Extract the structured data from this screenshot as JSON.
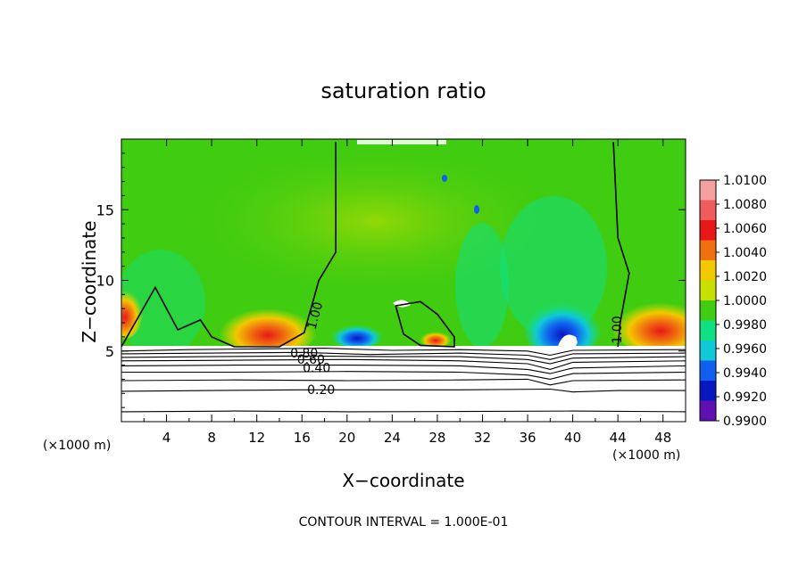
{
  "chart_data": {
    "type": "heatmap",
    "title": "saturation ratio",
    "xlabel": "X−coordinate",
    "ylabel": "Z−coordinate",
    "x_unit_left": "(×1000 m)",
    "x_unit_right": "(×1000 m)",
    "xlim": [
      0,
      50
    ],
    "ylim": [
      0,
      20
    ],
    "xticks": [
      4,
      8,
      12,
      16,
      20,
      24,
      28,
      32,
      36,
      40,
      44,
      48
    ],
    "yticks": [
      5,
      10,
      15
    ],
    "footer": "CONTOUR INTERVAL =  1.000E-01",
    "colorbar": {
      "levels": [
        "1.0100",
        "1.0080",
        "1.0060",
        "1.0040",
        "1.0020",
        "1.0000",
        "0.9980",
        "0.9960",
        "0.9940",
        "0.9920",
        "0.9900"
      ],
      "colors": [
        "#f4a0a0",
        "#ee5c5c",
        "#e81818",
        "#f07010",
        "#f2c800",
        "#c8e000",
        "#40cc10",
        "#10e080",
        "#10c8d8",
        "#1060f0",
        "#0818c0",
        "#6010b0"
      ]
    },
    "contour_labels": [
      {
        "text": "1.00",
        "x": 17.2,
        "y": 7.5,
        "angle": -75
      },
      {
        "text": "1.00",
        "x": 44.0,
        "y": 6.5,
        "angle": -90
      },
      {
        "text": "0.80",
        "x": 16.2,
        "y": 4.8,
        "angle": 0
      },
      {
        "text": "0.60",
        "x": 16.8,
        "y": 4.35,
        "angle": 0
      },
      {
        "text": "0.40",
        "x": 17.3,
        "y": 3.75,
        "angle": 0
      },
      {
        "text": "0.20",
        "x": 17.7,
        "y": 2.2,
        "angle": 0
      }
    ],
    "contour_lines": [
      {
        "level": "0.10",
        "points": [
          [
            0,
            0.7
          ],
          [
            10,
            0.75
          ],
          [
            20,
            0.7
          ],
          [
            30,
            0.72
          ],
          [
            40,
            0.75
          ],
          [
            50,
            0.7
          ]
        ]
      },
      {
        "level": "0.20",
        "points": [
          [
            0,
            2.15
          ],
          [
            8,
            2.2
          ],
          [
            16,
            2.25
          ],
          [
            22,
            2.25
          ],
          [
            30,
            2.25
          ],
          [
            38,
            2.3
          ],
          [
            40,
            2.1
          ],
          [
            44,
            2.2
          ],
          [
            50,
            2.2
          ]
        ]
      },
      {
        "level": "0.30",
        "points": [
          [
            0,
            2.9
          ],
          [
            10,
            2.95
          ],
          [
            20,
            2.9
          ],
          [
            30,
            2.95
          ],
          [
            36,
            3.0
          ],
          [
            38,
            2.6
          ],
          [
            40,
            2.9
          ],
          [
            50,
            2.95
          ]
        ]
      },
      {
        "level": "0.40",
        "points": [
          [
            0,
            3.5
          ],
          [
            10,
            3.5
          ],
          [
            20,
            3.55
          ],
          [
            30,
            3.5
          ],
          [
            36,
            3.3
          ],
          [
            38,
            3.0
          ],
          [
            40,
            3.4
          ],
          [
            50,
            3.5
          ]
        ]
      },
      {
        "level": "0.50",
        "points": [
          [
            0,
            3.95
          ],
          [
            10,
            4.0
          ],
          [
            20,
            4.0
          ],
          [
            30,
            3.95
          ],
          [
            36,
            3.7
          ],
          [
            38,
            3.4
          ],
          [
            40,
            3.8
          ],
          [
            50,
            3.95
          ]
        ]
      },
      {
        "level": "0.60",
        "points": [
          [
            0,
            4.3
          ],
          [
            10,
            4.35
          ],
          [
            20,
            4.4
          ],
          [
            30,
            4.3
          ],
          [
            36,
            4.1
          ],
          [
            38,
            3.7
          ],
          [
            40,
            4.2
          ],
          [
            50,
            4.3
          ]
        ]
      },
      {
        "level": "0.70",
        "points": [
          [
            0,
            4.55
          ],
          [
            8,
            4.6
          ],
          [
            16,
            4.65
          ],
          [
            24,
            4.6
          ],
          [
            30,
            4.6
          ],
          [
            36,
            4.4
          ],
          [
            38,
            4.1
          ],
          [
            40,
            4.5
          ],
          [
            50,
            4.6
          ]
        ]
      },
      {
        "level": "0.80",
        "points": [
          [
            0,
            4.8
          ],
          [
            8,
            4.85
          ],
          [
            16,
            4.9
          ],
          [
            22,
            4.75
          ],
          [
            30,
            4.85
          ],
          [
            36,
            4.7
          ],
          [
            38,
            4.4
          ],
          [
            40,
            4.8
          ],
          [
            50,
            4.85
          ]
        ]
      },
      {
        "level": "0.90",
        "points": [
          [
            0,
            5.0
          ],
          [
            6,
            5.1
          ],
          [
            12,
            5.15
          ],
          [
            18,
            5.2
          ],
          [
            24,
            5.05
          ],
          [
            30,
            5.1
          ],
          [
            36,
            5.0
          ],
          [
            38,
            4.7
          ],
          [
            40,
            5.05
          ],
          [
            50,
            5.1
          ]
        ]
      },
      {
        "level": "1.00",
        "points": [
          [
            0,
            5.3
          ],
          [
            3,
            9.5
          ],
          [
            5,
            6.5
          ],
          [
            7,
            7.2
          ],
          [
            8,
            6.0
          ],
          [
            10,
            5.3
          ],
          [
            14,
            5.3
          ],
          [
            16.2,
            6.3
          ],
          [
            17.5,
            10
          ],
          [
            19,
            12
          ],
          [
            19,
            19.8
          ]
        ]
      },
      {
        "level": "1.00",
        "points": [
          [
            43.6,
            19.8
          ],
          [
            44,
            13
          ],
          [
            45,
            10.5
          ],
          [
            44.2,
            7
          ],
          [
            44,
            5.3
          ]
        ]
      },
      {
        "level": "1.00",
        "points": [
          [
            24.3,
            8.2
          ],
          [
            26.5,
            8.5
          ],
          [
            28,
            7.6
          ],
          [
            29.5,
            6.0
          ],
          [
            29.5,
            5.3
          ],
          [
            26.5,
            5.4
          ],
          [
            25,
            6.2
          ],
          [
            24.3,
            8.2
          ]
        ]
      }
    ]
  }
}
